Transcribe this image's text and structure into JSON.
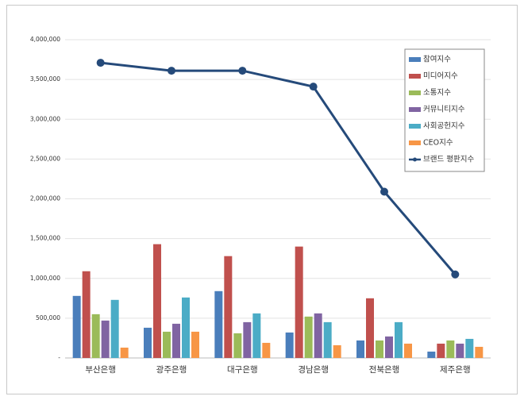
{
  "chart_data": {
    "type": "bar",
    "categories": [
      "부산은행",
      "광주은행",
      "대구은행",
      "경남은행",
      "전북은행",
      "제주은행"
    ],
    "series": [
      {
        "name": "참여지수",
        "color": "#4a7ebb",
        "values": [
          780000,
          380000,
          840000,
          320000,
          220000,
          80000
        ]
      },
      {
        "name": "미디어지수",
        "color": "#c0504d",
        "values": [
          1090000,
          1430000,
          1280000,
          1400000,
          750000,
          180000
        ]
      },
      {
        "name": "소통지수",
        "color": "#9bbb59",
        "values": [
          550000,
          330000,
          310000,
          520000,
          220000,
          220000
        ]
      },
      {
        "name": "커뮤니티지수",
        "color": "#8064a2",
        "values": [
          470000,
          430000,
          450000,
          560000,
          270000,
          180000
        ]
      },
      {
        "name": "사회공헌지수",
        "color": "#4bacc6",
        "values": [
          730000,
          760000,
          560000,
          450000,
          450000,
          240000
        ]
      },
      {
        "name": "CEO지수",
        "color": "#f79646",
        "values": [
          130000,
          330000,
          190000,
          160000,
          180000,
          140000
        ]
      },
      {
        "name": "브랜드 평판지수",
        "type": "line",
        "color": "#254a7a",
        "values": [
          3710000,
          3610000,
          3610000,
          3410000,
          2090000,
          1050000
        ]
      }
    ],
    "ylim": [
      0,
      4000000
    ],
    "yticks": [
      {
        "value": 0,
        "label": "-"
      },
      {
        "value": 500000,
        "label": "500,000"
      },
      {
        "value": 1000000,
        "label": "1,000,000"
      },
      {
        "value": 1500000,
        "label": "1,500,000"
      },
      {
        "value": 2000000,
        "label": "2,000,000"
      },
      {
        "value": 2500000,
        "label": "2,500,000"
      },
      {
        "value": 3000000,
        "label": "3,000,000"
      },
      {
        "value": 3500000,
        "label": "3,500,000"
      },
      {
        "value": 4000000,
        "label": "4,000,000"
      }
    ],
    "grid": true,
    "legend": "top-right"
  }
}
